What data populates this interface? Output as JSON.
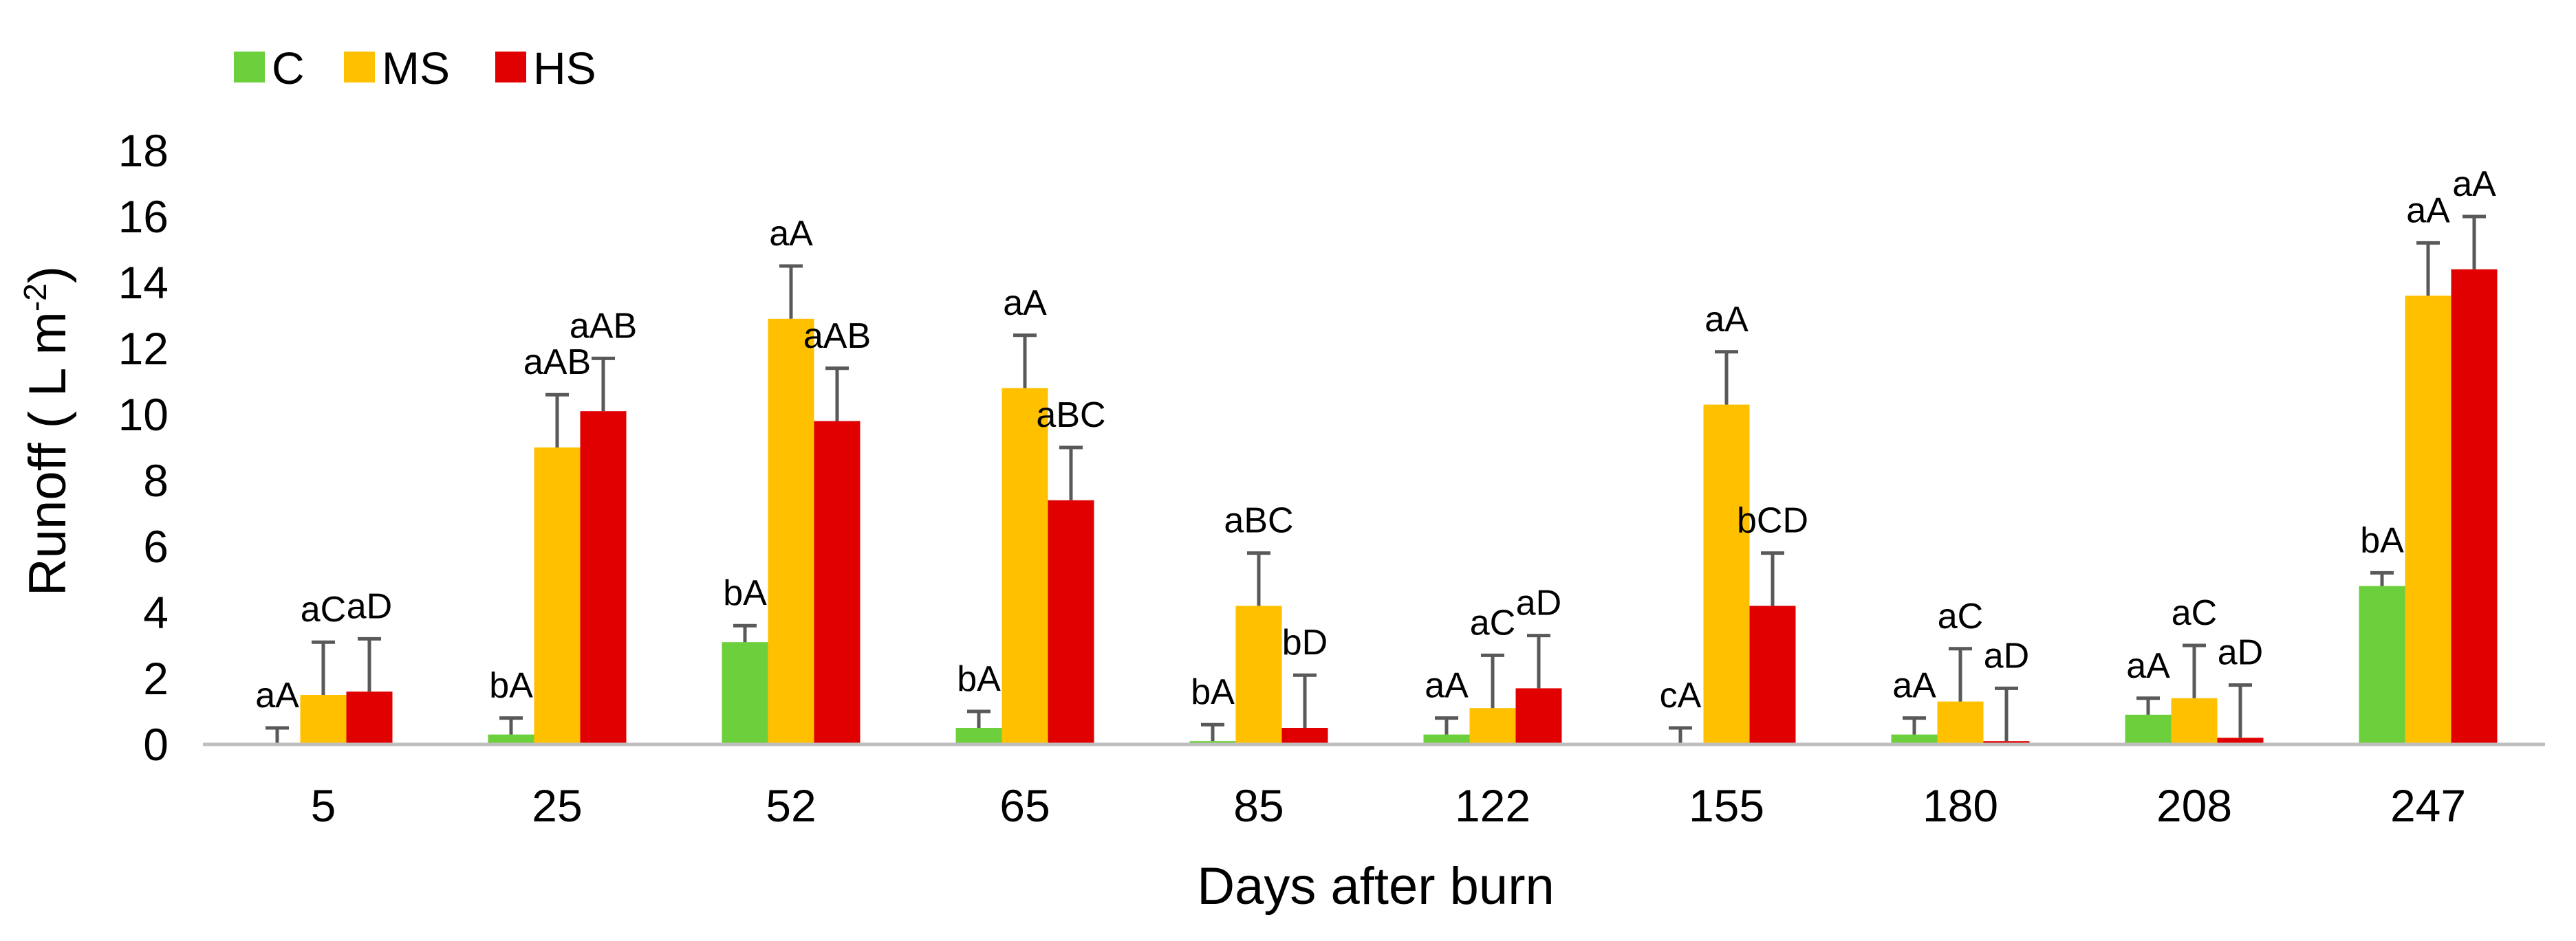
{
  "chart_data": {
    "type": "bar",
    "xlabel": "Days after burn",
    "ylabel": "Runoff ( L m",
    "ylabel_superscript": "-2",
    "ylabel_close": ")",
    "ylim": [
      0,
      18
    ],
    "yticks": [
      0,
      2,
      4,
      6,
      8,
      10,
      12,
      14,
      16,
      18
    ],
    "grid": false,
    "legend_position": "top-left",
    "categories": [
      "5",
      "25",
      "52",
      "65",
      "85",
      "122",
      "155",
      "180",
      "208",
      "247"
    ],
    "series": [
      {
        "name": "C",
        "color": "#6ccf3c",
        "values": [
          0.0,
          0.3,
          3.1,
          0.5,
          0.1,
          0.3,
          0.0,
          0.3,
          0.9,
          4.8
        ],
        "errors": [
          0.5,
          0.5,
          0.5,
          0.5,
          0.5,
          0.5,
          0.5,
          0.5,
          0.5,
          0.4
        ],
        "labels": [
          "aA",
          "bA",
          "bA",
          "bA",
          "bA",
          "aA",
          "cA",
          "aA",
          "aA",
          "bA"
        ]
      },
      {
        "name": "MS",
        "color": "#ffc000",
        "values": [
          1.5,
          9.0,
          12.9,
          10.8,
          4.2,
          1.1,
          10.3,
          1.3,
          1.4,
          13.6
        ],
        "errors": [
          1.6,
          1.6,
          1.6,
          1.6,
          1.6,
          1.6,
          1.6,
          1.6,
          1.6,
          1.6
        ],
        "labels": [
          "aC",
          "aAB",
          "aA",
          "aA",
          "aBC",
          "aC",
          "aA",
          "aC",
          "aC",
          "aA"
        ]
      },
      {
        "name": "HS",
        "color": "#e00000",
        "values": [
          1.6,
          10.1,
          9.8,
          7.4,
          0.5,
          1.7,
          4.2,
          0.1,
          0.2,
          14.4
        ],
        "errors": [
          1.6,
          1.6,
          1.6,
          1.6,
          1.6,
          1.6,
          1.6,
          1.6,
          1.6,
          1.6
        ],
        "labels": [
          "aD",
          "aAB",
          "aAB",
          "aBC",
          "bD",
          "aD",
          "bCD",
          "aD",
          "aD",
          "aA"
        ]
      }
    ]
  },
  "colors": {
    "axis": "#bfbfbf",
    "error_bar": "#595959",
    "text": "#000000"
  }
}
